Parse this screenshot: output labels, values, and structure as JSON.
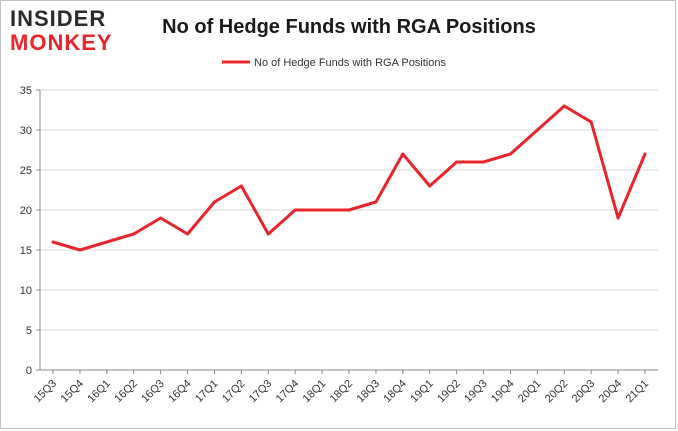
{
  "logo": {
    "line1": "INSIDER",
    "line2": "MONKEY"
  },
  "colors": {
    "series": "#e8242c",
    "axis": "#888888",
    "grid": "#d9d9d9",
    "text": "#333333"
  },
  "chart_data": {
    "type": "line",
    "title": "No of Hedge Funds with RGA Positions",
    "xlabel": "",
    "ylabel": "",
    "ylim": [
      0,
      35
    ],
    "yticks": [
      0,
      5,
      10,
      15,
      20,
      25,
      30,
      35
    ],
    "grid": true,
    "legend_position": "top-center",
    "categories": [
      "15Q3",
      "15Q4",
      "16Q1",
      "16Q2",
      "16Q3",
      "16Q4",
      "17Q1",
      "17Q2",
      "17Q3",
      "17Q4",
      "18Q1",
      "18Q2",
      "18Q3",
      "18Q4",
      "19Q1",
      "19Q2",
      "19Q3",
      "19Q4",
      "20Q1",
      "20Q2",
      "20Q3",
      "20Q4",
      "21Q1"
    ],
    "series": [
      {
        "name": "No of Hedge Funds with RGA Positions",
        "values": [
          16,
          15,
          16,
          17,
          19,
          17,
          21,
          23,
          17,
          20,
          20,
          20,
          21,
          27,
          23,
          26,
          26,
          27,
          30,
          33,
          31,
          19,
          27
        ]
      }
    ]
  }
}
